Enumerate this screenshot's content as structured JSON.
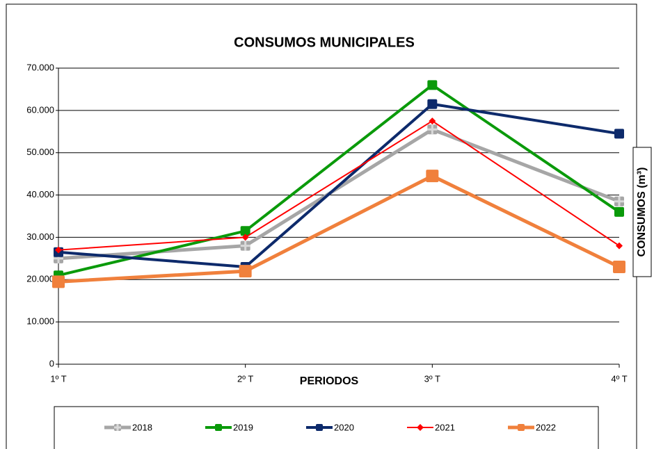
{
  "chart_data": {
    "type": "line",
    "title": "CONSUMOS MUNICIPALES",
    "x_label": "PERIODOS",
    "y_label": "CONSUMOS (m³)",
    "categories": [
      "1º T",
      "2º T",
      "3º T",
      "4º T"
    ],
    "series": [
      {
        "name": "2018",
        "color": "#a6a6a6",
        "marker": "plus",
        "values": [
          25000,
          28000,
          55500,
          38500
        ]
      },
      {
        "name": "2019",
        "color": "#0a9a0a",
        "marker": "square",
        "values": [
          21000,
          31500,
          66000,
          36000
        ]
      },
      {
        "name": "2020",
        "color": "#0d2a6b",
        "marker": "square",
        "values": [
          26500,
          23000,
          61500,
          54500
        ]
      },
      {
        "name": "2021",
        "color": "#ff0000",
        "marker": "diamond",
        "values": [
          27000,
          30000,
          57500,
          28000
        ]
      },
      {
        "name": "2022",
        "color": "#f0803c",
        "marker": "square",
        "values": [
          19500,
          22000,
          44500,
          23000
        ]
      }
    ],
    "ylim": [
      0,
      70000
    ],
    "yticks": [
      0,
      {
        "value": 10000,
        "label": "10.000"
      },
      {
        "value": 20000,
        "label": "20.000"
      },
      {
        "value": 30000,
        "label": "30.000"
      },
      {
        "value": 40000,
        "label": "40.000"
      },
      {
        "value": 50000,
        "label": "50.000"
      },
      {
        "value": 60000,
        "label": "60.000"
      },
      {
        "value": 70000,
        "label": "70.000"
      }
    ],
    "grid": true,
    "legend": "bottom"
  }
}
